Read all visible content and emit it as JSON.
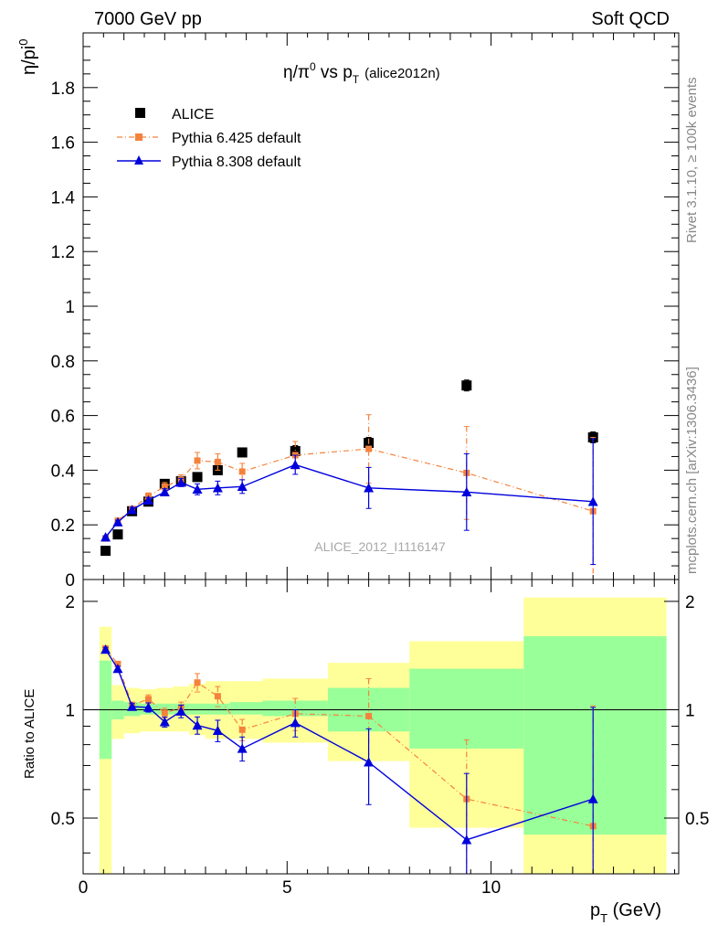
{
  "header": {
    "left": "7000 GeV pp",
    "right": "Soft QCD"
  },
  "title": {
    "main": "η/π",
    "sup": "0",
    "mid": " vs p",
    "sub": "T",
    "tag": "(alice2012n)"
  },
  "ylabel_top": {
    "base": "η/pi",
    "sup": "0"
  },
  "ylabel_bottom": "Ratio to ALICE",
  "xlabel": {
    "base": "p",
    "sub": "T",
    "unit": " (GeV)"
  },
  "side_text_1": "Rivet 3.1.10, ≥ 100k events",
  "side_text_2": "mcplots.cern.ch [arXiv:1306.3436]",
  "watermark": "ALICE_2012_I1116147",
  "colors": {
    "data": "#000000",
    "pythia6": "#f5823c",
    "pythia8": "#0000dd",
    "band_inner": "#99ff99",
    "band_outer": "#ffff99"
  },
  "chart_data": [
    {
      "type": "scatter",
      "panel": "main",
      "xlim": [
        0,
        14.6
      ],
      "ylim": [
        0,
        2.0
      ],
      "yticks": [
        0,
        0.2,
        0.4,
        0.6,
        0.8,
        1,
        1.2,
        1.4,
        1.6,
        1.8
      ],
      "ytick_labels": [
        "0",
        "0.2",
        "0.4",
        "0.6",
        "0.8",
        "1",
        "1.2",
        "1.4",
        "1.6",
        "1.8"
      ],
      "xticks": [
        0,
        5,
        10
      ],
      "xtick_labels": [
        "0",
        "5",
        "10"
      ],
      "legend_position": "top-left",
      "series": [
        {
          "name": "ALICE",
          "marker": "square",
          "x": [
            0.55,
            0.85,
            1.2,
            1.6,
            2.0,
            2.4,
            2.8,
            3.3,
            3.9,
            5.2,
            7.0,
            9.4,
            12.5
          ],
          "y": [
            0.105,
            0.165,
            0.25,
            0.285,
            0.35,
            0.36,
            0.375,
            0.4,
            0.465,
            0.47,
            0.5,
            0.71,
            0.52
          ],
          "err": [
            0.01,
            0.01,
            0.01,
            0.01,
            0.01,
            0.01,
            0.01,
            0.012,
            0.015,
            0.02,
            0.02,
            0.02,
            0.02
          ]
        },
        {
          "name": "Pythia 6.425 default",
          "marker": "square-small",
          "x": [
            0.55,
            0.85,
            1.2,
            1.6,
            2.0,
            2.4,
            2.8,
            3.3,
            3.9,
            5.2,
            7.0,
            9.4,
            12.5
          ],
          "y": [
            0.15,
            0.215,
            0.258,
            0.305,
            0.34,
            0.365,
            0.435,
            0.43,
            0.395,
            0.455,
            0.478,
            0.39,
            0.25
          ],
          "err": [
            0.006,
            0.008,
            0.01,
            0.012,
            0.015,
            0.018,
            0.03,
            0.03,
            0.03,
            0.05,
            0.125,
            0.17,
            0.27
          ]
        },
        {
          "name": "Pythia 8.308 default",
          "marker": "triangle",
          "x": [
            0.55,
            0.85,
            1.2,
            1.6,
            2.0,
            2.4,
            2.8,
            3.3,
            3.9,
            5.2,
            7.0,
            9.4,
            12.5
          ],
          "y": [
            0.155,
            0.21,
            0.255,
            0.29,
            0.32,
            0.355,
            0.33,
            0.335,
            0.34,
            0.42,
            0.335,
            0.32,
            0.285
          ],
          "err": [
            0.005,
            0.007,
            0.009,
            0.01,
            0.012,
            0.015,
            0.02,
            0.025,
            0.025,
            0.035,
            0.075,
            0.14,
            0.23
          ]
        }
      ]
    },
    {
      "type": "scatter",
      "panel": "ratio",
      "xlim": [
        0,
        14.6
      ],
      "ylim": [
        0.35,
        2.3
      ],
      "log_y": true,
      "yticks": [
        0.5,
        1,
        2
      ],
      "ytick_labels": [
        "0.5",
        "1",
        "2"
      ],
      "reference_line": 1,
      "bands": {
        "edges": [
          0.4,
          0.7,
          1.0,
          1.4,
          1.8,
          2.2,
          2.6,
          3.0,
          3.6,
          4.4,
          6.0,
          8.0,
          10.8,
          14.3
        ],
        "inner_lo": [
          0.73,
          0.94,
          0.96,
          0.97,
          0.97,
          0.97,
          0.97,
          0.97,
          0.97,
          0.96,
          0.87,
          0.78,
          0.45
        ],
        "inner_hi": [
          1.37,
          1.06,
          1.05,
          1.04,
          1.04,
          1.04,
          1.04,
          1.04,
          1.05,
          1.06,
          1.15,
          1.3,
          1.6
        ],
        "outer_lo": [
          0.3,
          0.83,
          0.86,
          0.87,
          0.87,
          0.87,
          0.85,
          0.83,
          0.83,
          0.81,
          0.72,
          0.47,
          0.3
        ],
        "outer_hi": [
          1.7,
          1.17,
          1.15,
          1.14,
          1.15,
          1.16,
          1.18,
          1.2,
          1.2,
          1.22,
          1.35,
          1.55,
          2.05
        ]
      },
      "series": [
        {
          "name": "Pythia 6.425 default",
          "x": [
            0.55,
            0.85,
            1.2,
            1.6,
            2.0,
            2.4,
            2.8,
            3.3,
            3.9,
            5.2,
            7.0,
            9.4,
            12.5
          ],
          "y": [
            1.48,
            1.34,
            1.03,
            1.07,
            0.98,
            1.01,
            1.19,
            1.09,
            0.88,
            0.975,
            0.96,
            0.565,
            0.475
          ],
          "err": [
            0.02,
            0.02,
            0.02,
            0.03,
            0.03,
            0.04,
            0.07,
            0.07,
            0.06,
            0.1,
            0.26,
            0.26,
            0.55
          ]
        },
        {
          "name": "Pythia 8.308 default",
          "x": [
            0.55,
            0.85,
            1.2,
            1.6,
            2.0,
            2.4,
            2.8,
            3.3,
            3.9,
            5.2,
            7.0,
            9.4,
            12.5
          ],
          "y": [
            1.47,
            1.3,
            1.02,
            1.015,
            0.925,
            0.99,
            0.905,
            0.875,
            0.78,
            0.92,
            0.715,
            0.435,
            0.565
          ],
          "err": [
            0.02,
            0.02,
            0.02,
            0.03,
            0.03,
            0.04,
            0.05,
            0.06,
            0.06,
            0.08,
            0.17,
            0.23,
            0.45
          ]
        }
      ]
    }
  ]
}
